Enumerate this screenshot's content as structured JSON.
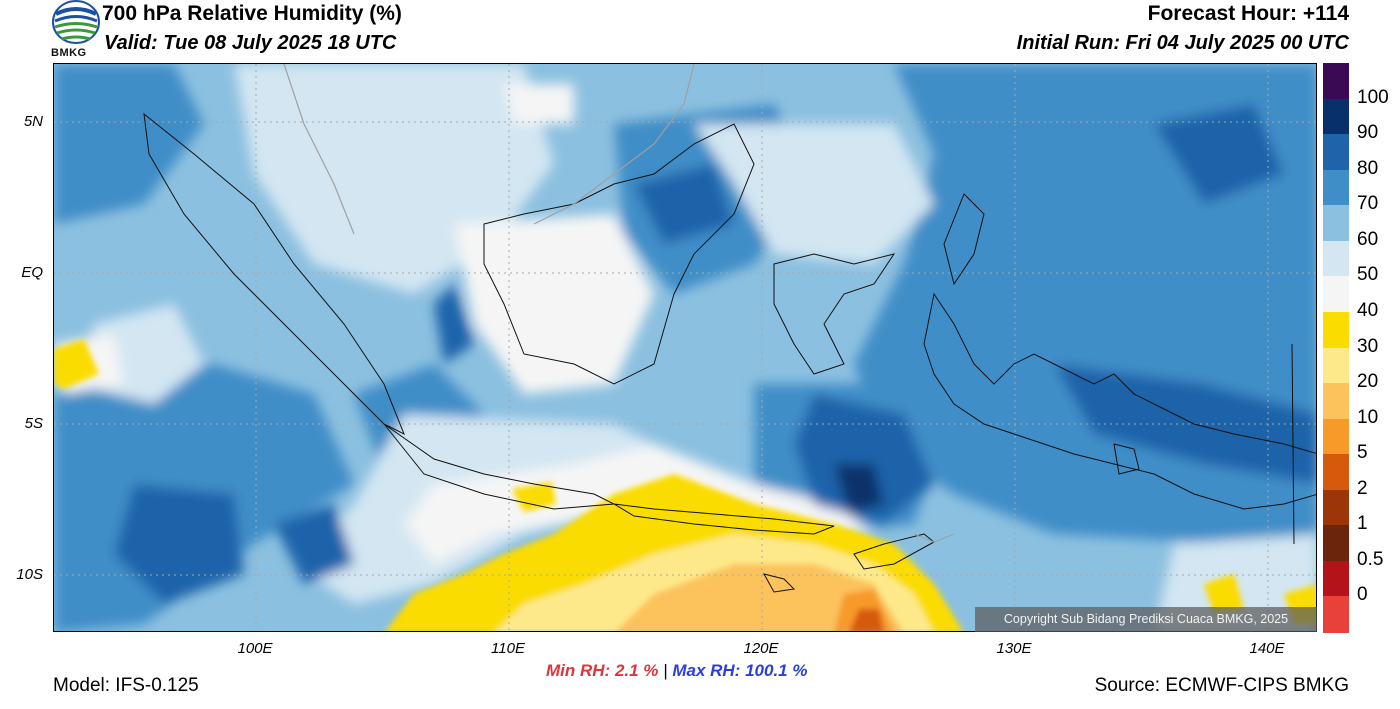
{
  "header": {
    "title": "700 hPa Relative Humidity (%)",
    "valid": "Valid: Tue 08 July 2025 18 UTC",
    "forecast_hour": "Forecast Hour: +114",
    "initial_run": "Initial Run: Fri 04 July 2025 00 UTC",
    "logo_text": "BMKG"
  },
  "axes": {
    "lat_labels": [
      "5N",
      "EQ",
      "5S",
      "10S"
    ],
    "lon_labels": [
      "100E",
      "110E",
      "120E",
      "130E",
      "140E"
    ]
  },
  "stats": {
    "min_label": "Min RH:",
    "min_value": "2.1 %",
    "separator": "|",
    "max_label": "Max RH:",
    "max_value": "100.1 %"
  },
  "footer": {
    "model": "Model: IFS-0.125",
    "source": "Source: ECMWF-CIPS BMKG",
    "copyright": "Copyright Sub Bidang Prediksi Cuaca BMKG, 2025"
  },
  "colorbar": {
    "labels": [
      "100",
      "90",
      "80",
      "70",
      "60",
      "50",
      "40",
      "30",
      "20",
      "10",
      "5",
      "2",
      "1",
      "0.5",
      "0"
    ],
    "colors": [
      "#3b0a55",
      "#08306b",
      "#1f63aa",
      "#3f8ec8",
      "#8cc0e0",
      "#d3e6f2",
      "#f5f5f5",
      "#fbdc00",
      "#fde98a",
      "#fcc25b",
      "#f79a2a",
      "#d55a0c",
      "#9c3508",
      "#6b250c",
      "#b5131c",
      "#e8413a"
    ]
  }
}
